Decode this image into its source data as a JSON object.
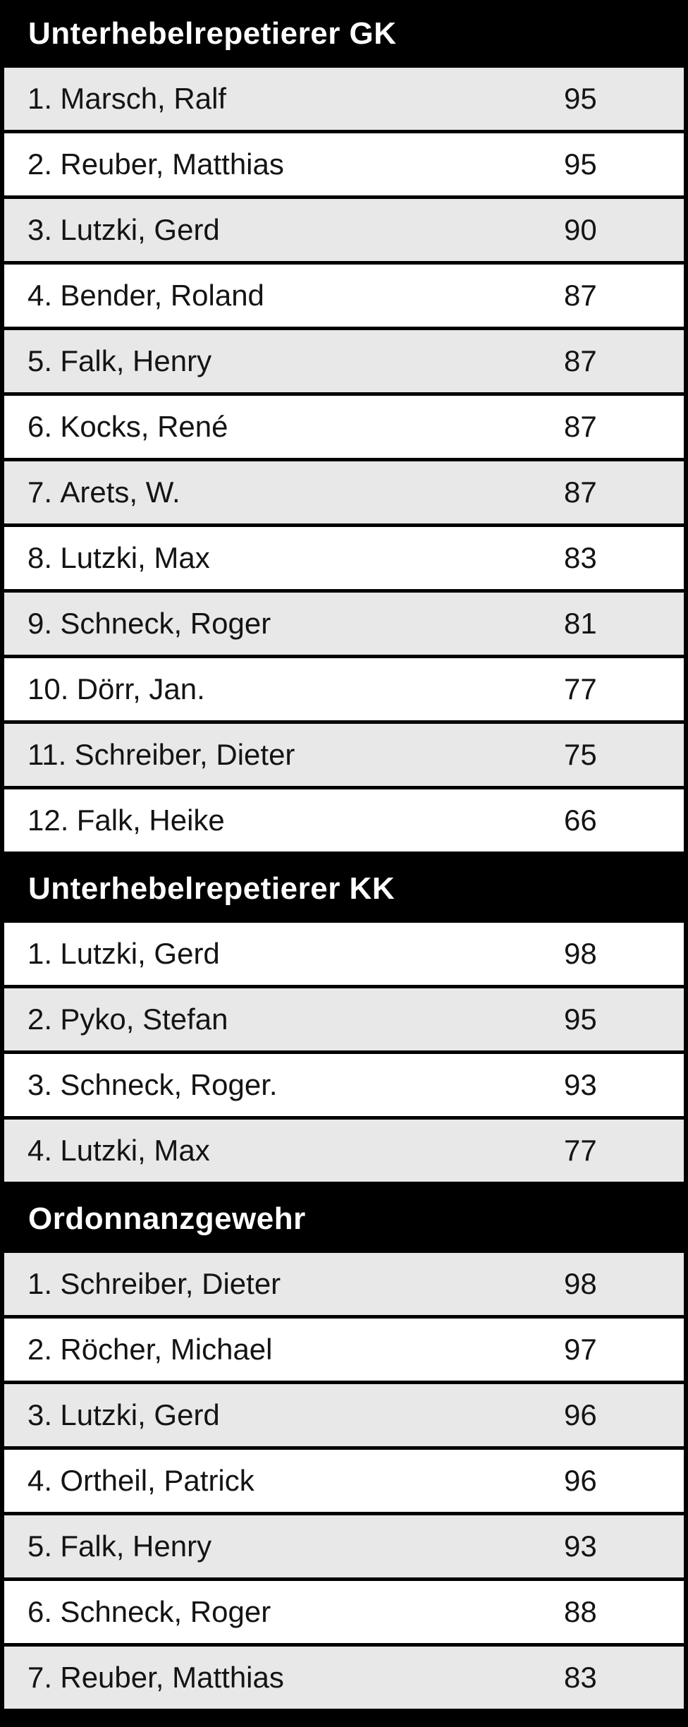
{
  "board": {
    "colors": {
      "frame": "#000000",
      "shaded_row": "#e8e8e8",
      "plain_row": "#ffffff",
      "header_text": "#ffffff",
      "row_text": "#141414"
    },
    "sections": [
      {
        "title": "Unterhebelrepetierer GK",
        "zebra_start": "shaded",
        "rows": [
          {
            "rank": "1.",
            "name": "Marsch, Ralf",
            "score": "95"
          },
          {
            "rank": "2.",
            "name": "Reuber, Matthias",
            "score": "95"
          },
          {
            "rank": "3.",
            "name": "Lutzki, Gerd",
            "score": "90"
          },
          {
            "rank": "4.",
            "name": "Bender, Roland",
            "score": "87"
          },
          {
            "rank": "5.",
            "name": "Falk, Henry",
            "score": "87"
          },
          {
            "rank": "6.",
            "name": "Kocks, René",
            "score": "87"
          },
          {
            "rank": "7.",
            "name": "Arets, W.",
            "score": "87"
          },
          {
            "rank": "8.",
            "name": "Lutzki, Max",
            "score": "83"
          },
          {
            "rank": "9.",
            "name": "Schneck, Roger",
            "score": "81"
          },
          {
            "rank": "10.",
            "name": "Dörr, Jan.",
            "score": "77"
          },
          {
            "rank": "11.",
            "name": "Schreiber, Dieter",
            "score": "75"
          },
          {
            "rank": "12.",
            "name": "Falk, Heike",
            "score": "66"
          }
        ]
      },
      {
        "title": "Unterhebelrepetierer KK",
        "zebra_start": "plain",
        "rows": [
          {
            "rank": "1.",
            "name": "Lutzki, Gerd",
            "score": "98"
          },
          {
            "rank": "2.",
            "name": "Pyko, Stefan",
            "score": "95"
          },
          {
            "rank": "3.",
            "name": "Schneck, Roger.",
            "score": "93"
          },
          {
            "rank": "4.",
            "name": "Lutzki, Max",
            "score": "77"
          }
        ]
      },
      {
        "title": "Ordonnanzgewehr",
        "zebra_start": "shaded",
        "rows": [
          {
            "rank": "1.",
            "name": "Schreiber, Dieter",
            "score": "98"
          },
          {
            "rank": "2.",
            "name": "Röcher, Michael",
            "score": "97"
          },
          {
            "rank": "3.",
            "name": "Lutzki, Gerd",
            "score": "96"
          },
          {
            "rank": "4.",
            "name": "Ortheil, Patrick",
            "score": "96"
          },
          {
            "rank": "5.",
            "name": "Falk, Henry",
            "score": "93"
          },
          {
            "rank": "6.",
            "name": "Schneck, Roger",
            "score": "88"
          },
          {
            "rank": "7.",
            "name": "Reuber, Matthias",
            "score": "83"
          }
        ]
      }
    ]
  }
}
